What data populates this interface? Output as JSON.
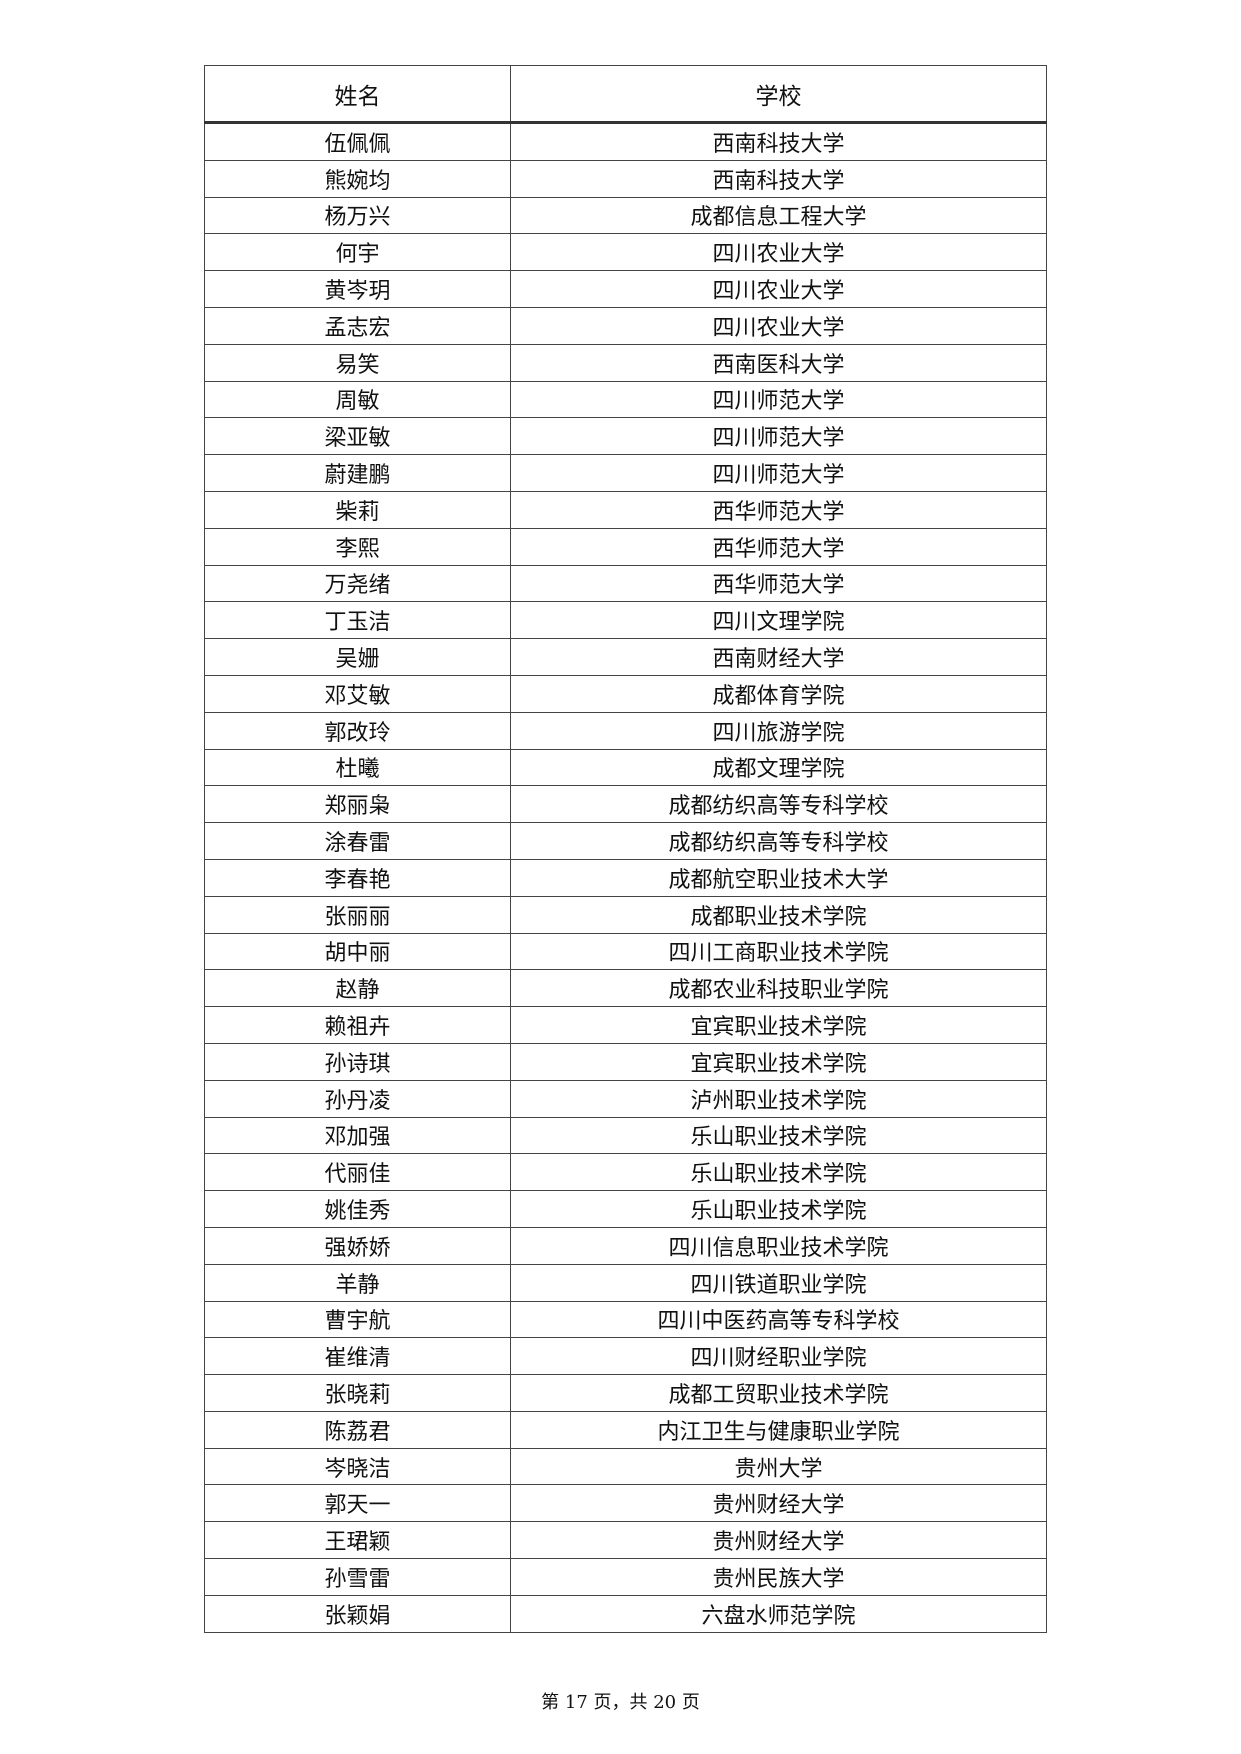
{
  "table": {
    "headers": [
      "姓名",
      "学校"
    ],
    "rows": [
      [
        "伍佩佩",
        "西南科技大学"
      ],
      [
        "熊婉均",
        "西南科技大学"
      ],
      [
        "杨万兴",
        "成都信息工程大学"
      ],
      [
        "何宇",
        "四川农业大学"
      ],
      [
        "黄岑玥",
        "四川农业大学"
      ],
      [
        "孟志宏",
        "四川农业大学"
      ],
      [
        "易笑",
        "西南医科大学"
      ],
      [
        "周敏",
        "四川师范大学"
      ],
      [
        "梁亚敏",
        "四川师范大学"
      ],
      [
        "蔚建鹏",
        "四川师范大学"
      ],
      [
        "柴莉",
        "西华师范大学"
      ],
      [
        "李熙",
        "西华师范大学"
      ],
      [
        "万尧绪",
        "西华师范大学"
      ],
      [
        "丁玉洁",
        "四川文理学院"
      ],
      [
        "吴姗",
        "西南财经大学"
      ],
      [
        "邓艾敏",
        "成都体育学院"
      ],
      [
        "郭改玲",
        "四川旅游学院"
      ],
      [
        "杜曦",
        "成都文理学院"
      ],
      [
        "郑丽枭",
        "成都纺织高等专科学校"
      ],
      [
        "涂春雷",
        "成都纺织高等专科学校"
      ],
      [
        "李春艳",
        "成都航空职业技术大学"
      ],
      [
        "张丽丽",
        "成都职业技术学院"
      ],
      [
        "胡中丽",
        "四川工商职业技术学院"
      ],
      [
        "赵静",
        "成都农业科技职业学院"
      ],
      [
        "赖祖卉",
        "宜宾职业技术学院"
      ],
      [
        "孙诗琪",
        "宜宾职业技术学院"
      ],
      [
        "孙丹凌",
        "泸州职业技术学院"
      ],
      [
        "邓加强",
        "乐山职业技术学院"
      ],
      [
        "代丽佳",
        "乐山职业技术学院"
      ],
      [
        "姚佳秀",
        "乐山职业技术学院"
      ],
      [
        "强娇娇",
        "四川信息职业技术学院"
      ],
      [
        "羊静",
        "四川铁道职业学院"
      ],
      [
        "曹宇航",
        "四川中医药高等专科学校"
      ],
      [
        "崔维清",
        "四川财经职业学院"
      ],
      [
        "张晓莉",
        "成都工贸职业技术学院"
      ],
      [
        "陈荔君",
        "内江卫生与健康职业学院"
      ],
      [
        "岑晓洁",
        "贵州大学"
      ],
      [
        "郭天一",
        "贵州财经大学"
      ],
      [
        "王珺颖",
        "贵州财经大学"
      ],
      [
        "孙雪雷",
        "贵州民族大学"
      ],
      [
        "张颖娟",
        "六盘水师范学院"
      ]
    ]
  },
  "footer": {
    "page_label": "第 17 页，共 20 页"
  }
}
